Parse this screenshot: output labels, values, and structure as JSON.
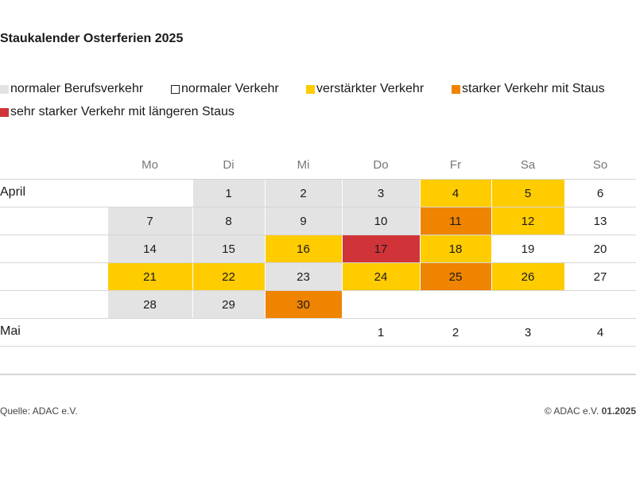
{
  "title": "Staukalender Osterferien 2025",
  "legend": [
    {
      "label": "normaler Berufsverkehr",
      "color": "#e3e3e3"
    },
    {
      "label": "normaler Verkehr",
      "color": "#ffffff"
    },
    {
      "label": "verstärkter Verkehr",
      "color": "#ffcc00"
    },
    {
      "label": "starker Verkehr mit Staus",
      "color": "#ef8400"
    },
    {
      "label": "sehr starker Verkehr mit längeren Staus",
      "color": "#d03438"
    }
  ],
  "weekdays": [
    "Mo",
    "Di",
    "Mi",
    "Do",
    "Fr",
    "Sa",
    "So"
  ],
  "rows": [
    {
      "month": "April",
      "days": [
        null,
        1,
        2,
        3,
        4,
        5,
        6
      ],
      "levels": [
        null,
        0,
        0,
        0,
        2,
        2,
        1
      ]
    },
    {
      "month": null,
      "days": [
        7,
        8,
        9,
        10,
        11,
        12,
        13
      ],
      "levels": [
        0,
        0,
        0,
        0,
        3,
        2,
        1
      ]
    },
    {
      "month": null,
      "days": [
        14,
        15,
        16,
        17,
        18,
        19,
        20
      ],
      "levels": [
        0,
        0,
        2,
        4,
        2,
        1,
        1
      ]
    },
    {
      "month": null,
      "days": [
        21,
        22,
        23,
        24,
        25,
        26,
        27
      ],
      "levels": [
        2,
        2,
        0,
        2,
        3,
        2,
        1
      ]
    },
    {
      "month": null,
      "days": [
        28,
        29,
        30,
        null,
        null,
        null,
        null
      ],
      "levels": [
        0,
        0,
        3,
        null,
        null,
        null,
        null
      ]
    },
    {
      "month": "Mai",
      "days": [
        null,
        null,
        null,
        1,
        2,
        3,
        4
      ],
      "levels": [
        null,
        null,
        null,
        1,
        1,
        1,
        1
      ]
    }
  ],
  "footer": {
    "source": "Quelle: ADAC e.V.",
    "copyright": "© ADAC e.V.",
    "date": "01.2025"
  }
}
